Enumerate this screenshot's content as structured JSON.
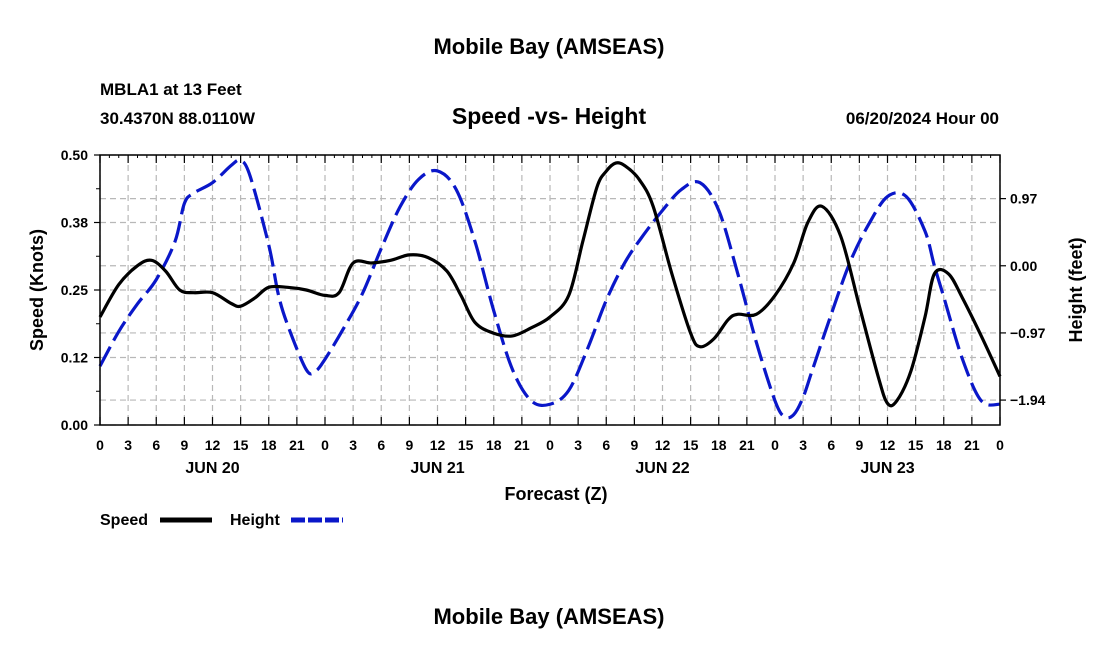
{
  "header": {
    "title": "Mobile Bay (AMSEAS)",
    "station": "MBLA1 at 13 Feet",
    "coords": "30.4370N  88.0110W",
    "subtitle": "Speed -vs- Height",
    "date": "06/20/2024 Hour 00"
  },
  "footer": {
    "title": "Mobile Bay (AMSEAS)"
  },
  "legend": {
    "speed_label": "Speed",
    "height_label": "Height"
  },
  "chart_data": {
    "type": "line",
    "title": "Speed -vs- Height",
    "xlabel": "Forecast (Z)",
    "ylabel_left": "Speed (Knots)",
    "ylabel_right": "Height (feet)",
    "xlim": [
      0,
      96
    ],
    "ylim_left": [
      0,
      0.5
    ],
    "ylim_right": [
      -2.3,
      1.6
    ],
    "x_tick_hours": [
      0,
      3,
      6,
      9,
      12,
      15,
      18,
      21,
      24,
      27,
      30,
      33,
      36,
      39,
      42,
      45,
      48,
      51,
      54,
      57,
      60,
      63,
      66,
      69,
      72,
      75,
      78,
      81,
      84,
      87,
      90,
      93,
      96
    ],
    "x_tick_labels": [
      "0",
      "3",
      "6",
      "9",
      "12",
      "15",
      "18",
      "21",
      "0",
      "3",
      "6",
      "9",
      "12",
      "15",
      "18",
      "21",
      "0",
      "3",
      "6",
      "9",
      "12",
      "15",
      "18",
      "21",
      "0",
      "3",
      "6",
      "9",
      "12",
      "15",
      "18",
      "21",
      "0"
    ],
    "day_labels": [
      {
        "label": "JUN 20",
        "hour": 12
      },
      {
        "label": "JUN 21",
        "hour": 36
      },
      {
        "label": "JUN 22",
        "hour": 60
      },
      {
        "label": "JUN 23",
        "hour": 84
      }
    ],
    "y_left_ticks": [
      0.0,
      0.125,
      0.25,
      0.375,
      0.5
    ],
    "y_left_tick_labels": [
      "0.00",
      "0.12",
      "0.25",
      "0.38",
      "0.50"
    ],
    "y_right_ticks": [
      0.97,
      0.0,
      -0.97,
      -1.94
    ],
    "y_right_tick_labels": [
      "0.97",
      "0.00",
      "−0.97",
      "−1.94"
    ],
    "series": [
      {
        "name": "Speed",
        "axis": "left",
        "color": "#000000",
        "dash": "solid",
        "x": [
          0,
          2,
          4,
          5.5,
          7,
          8.5,
          10,
          12,
          14,
          15,
          16.5,
          18,
          20,
          22,
          24,
          25.5,
          27,
          29,
          31,
          33,
          35,
          37,
          38.5,
          40,
          42,
          44,
          46,
          48,
          50,
          51.5,
          53,
          54,
          55,
          56,
          57.5,
          59,
          61,
          63,
          64,
          65.5,
          67,
          68,
          70,
          72,
          74,
          75.5,
          77,
          79,
          81,
          83,
          84,
          85,
          86.5,
          88,
          89,
          90.5,
          92,
          94,
          96
        ],
        "values": [
          0.2,
          0.26,
          0.295,
          0.305,
          0.285,
          0.25,
          0.245,
          0.245,
          0.225,
          0.22,
          0.235,
          0.255,
          0.255,
          0.25,
          0.24,
          0.245,
          0.3,
          0.3,
          0.305,
          0.315,
          0.31,
          0.285,
          0.24,
          0.19,
          0.17,
          0.165,
          0.18,
          0.2,
          0.24,
          0.34,
          0.44,
          0.47,
          0.485,
          0.48,
          0.455,
          0.405,
          0.28,
          0.17,
          0.145,
          0.16,
          0.195,
          0.205,
          0.205,
          0.24,
          0.3,
          0.375,
          0.405,
          0.35,
          0.22,
          0.09,
          0.04,
          0.045,
          0.1,
          0.2,
          0.28,
          0.28,
          0.235,
          0.165,
          0.09
        ]
      },
      {
        "name": "Height",
        "axis": "right",
        "color": "#0a17c9",
        "dash": "dashed",
        "x": [
          0,
          2,
          4,
          6,
          8,
          9,
          10,
          12,
          14,
          15,
          16,
          18,
          19,
          20,
          22,
          23,
          24,
          26,
          28,
          30,
          32,
          34,
          36,
          38,
          40,
          42,
          44,
          46,
          48,
          50,
          52,
          54,
          56,
          58,
          60,
          62,
          64,
          66,
          68,
          70,
          72,
          73,
          74,
          75,
          76,
          78,
          80,
          82,
          84,
          86,
          88,
          89,
          90,
          92,
          94,
          96
        ],
        "values": [
          -1.45,
          -0.95,
          -0.55,
          -0.2,
          0.35,
          0.9,
          1.05,
          1.2,
          1.45,
          1.52,
          1.3,
          0.3,
          -0.4,
          -0.85,
          -1.5,
          -1.52,
          -1.35,
          -0.9,
          -0.4,
          0.25,
          0.85,
          1.25,
          1.37,
          1.1,
          0.35,
          -0.65,
          -1.5,
          -1.95,
          -2.0,
          -1.8,
          -1.2,
          -0.5,
          0.05,
          0.45,
          0.8,
          1.1,
          1.2,
          0.8,
          -0.1,
          -1.1,
          -1.95,
          -2.18,
          -2.15,
          -1.9,
          -1.5,
          -0.7,
          0.05,
          0.6,
          1.0,
          1.0,
          0.5,
          0.0,
          -0.45,
          -1.35,
          -1.95,
          -2.0
        ]
      }
    ]
  }
}
